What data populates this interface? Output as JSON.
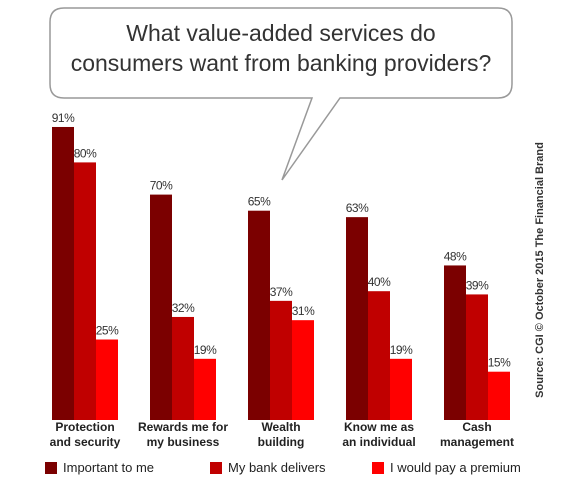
{
  "chart_data": {
    "type": "bar",
    "title": "What value-added services do\nconsumers want from banking providers?",
    "categories": [
      "Protection\nand security",
      "Rewards me for\nmy business",
      "Wealth\nbuilding",
      "Know me as\nan individual",
      "Cash\nmanagement"
    ],
    "series": [
      {
        "name": "Important to me",
        "color": "#7b0000",
        "values": [
          91,
          70,
          65,
          63,
          48
        ],
        "value_labels": [
          "91%",
          "70%",
          "65%",
          "63%",
          "48%"
        ]
      },
      {
        "name": "My bank delivers",
        "color": "#c00000",
        "values": [
          80,
          32,
          37,
          40,
          39
        ],
        "value_labels": [
          "80%",
          "32%",
          "37%",
          "40%",
          "39%"
        ]
      },
      {
        "name": "I would pay a premium",
        "color": "#ff0000",
        "values": [
          25,
          19,
          31,
          19,
          15
        ],
        "value_labels": [
          "25%",
          "19%",
          "31%",
          "19%",
          "15%"
        ]
      }
    ],
    "source": "Source: CGI © October 2015 The Financial Brand"
  }
}
